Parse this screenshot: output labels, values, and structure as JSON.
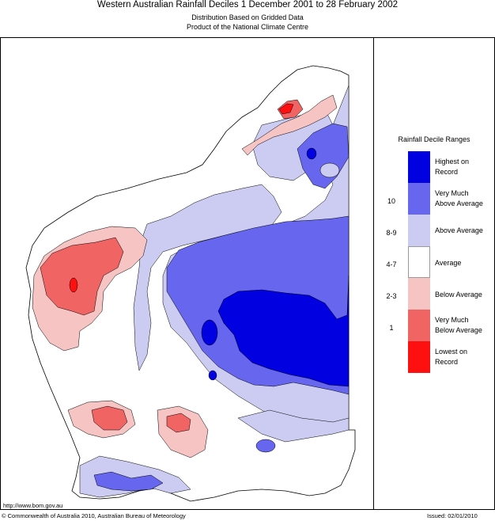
{
  "header": {
    "title": "Western Australian Rainfall Deciles     1 December 2001 to 28 February 2002",
    "subtitle_1": "Distribution Based on Gridded Data",
    "subtitle_2": "Product of the National Climate Centre"
  },
  "legend": {
    "title": "Rainfall Decile Ranges",
    "items": [
      {
        "label_1": "Highest on",
        "label_2": "Record",
        "range": "",
        "color": "#0000e0"
      },
      {
        "label_1": "Very Much",
        "label_2": "Above Average",
        "range": "10",
        "color": "#6666ee"
      },
      {
        "label_1": "Above Average",
        "label_2": "",
        "range": "8-9",
        "color": "#ccccf2"
      },
      {
        "label_1": "Average",
        "label_2": "",
        "range": "4-7",
        "color": "#ffffff"
      },
      {
        "label_1": "Below Average",
        "label_2": "",
        "range": "2-3",
        "color": "#f7c4c4"
      },
      {
        "label_1": "Very Much",
        "label_2": "Below Average",
        "range": "1",
        "color": "#f06464"
      },
      {
        "label_1": "Lowest on",
        "label_2": "Record",
        "range": "",
        "color": "#ff1010"
      }
    ]
  },
  "footer": {
    "url": "http://www.bom.gov.au",
    "copyright": "© Commonwealth of Australia 2010, Australian Bureau of Meteorology",
    "issued": "Issued: 02/01/2010"
  }
}
